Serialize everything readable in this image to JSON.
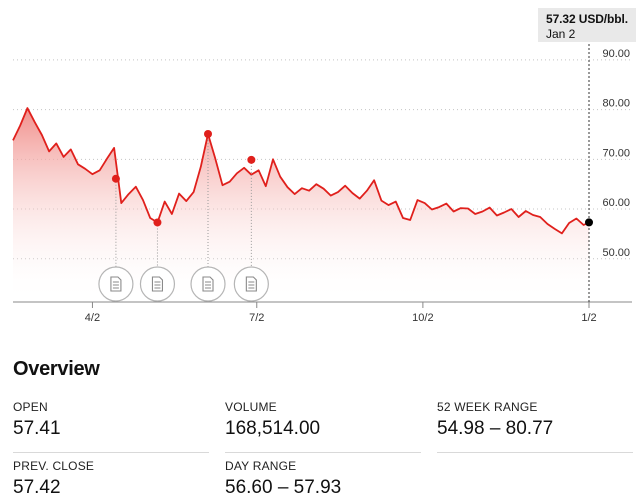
{
  "tooltip": {
    "value": "57.32 USD/bbl.",
    "date": "Jan 2"
  },
  "chart_data": {
    "type": "area",
    "unit": "USD/bbl.",
    "y_ticks": [
      90,
      80,
      70,
      60,
      50
    ],
    "y_tick_labels": [
      "90.00",
      "80.00",
      "70.00",
      "60.00",
      "50.00"
    ],
    "ylim": [
      41.3,
      92.8
    ],
    "xlim": [
      0,
      319
    ],
    "x_tick_positions": [
      44,
      135,
      227,
      319
    ],
    "x_tick_labels": [
      "4/2",
      "7/2",
      "10/2",
      "1/2"
    ],
    "grid": "horizontal dotted",
    "colors": {
      "line": "#e0201c",
      "fill_top": "#f08a86",
      "fill_bottom": "#ffffff",
      "marker_event": "#e0201c",
      "marker_current": "#000000",
      "grid": "#c4c4c4",
      "axis": "#888888"
    },
    "series": [
      {
        "x": [
          0,
          4,
          8,
          12,
          16,
          20,
          24,
          28,
          32,
          36,
          40,
          44,
          48,
          52,
          56,
          60,
          64,
          68,
          72,
          76,
          80,
          84,
          88,
          92,
          96,
          100,
          104,
          108,
          112,
          116,
          120,
          124,
          128,
          132,
          136,
          140,
          144,
          148,
          152,
          156,
          160,
          164,
          168,
          172,
          176,
          180,
          184,
          188,
          192,
          196,
          200,
          204,
          208,
          212,
          216,
          220,
          224,
          228,
          232,
          236,
          240,
          244,
          248,
          252,
          256,
          260,
          264,
          268,
          272,
          276,
          280,
          284,
          288,
          292,
          296,
          300,
          304,
          308,
          312,
          316,
          319
        ],
        "values": [
          73.8,
          76.8,
          80.3,
          77.5,
          74.9,
          71.6,
          73.2,
          70.5,
          72.0,
          69.0,
          68.1,
          67.0,
          67.8,
          70.1,
          72.3,
          61.2,
          63.0,
          64.5,
          61.8,
          58.2,
          57.3,
          61.5,
          59.0,
          63.1,
          61.6,
          63.4,
          68.5,
          75.1,
          70.2,
          64.8,
          65.5,
          67.2,
          68.3,
          66.9,
          67.8,
          64.6,
          70.0,
          66.5,
          64.4,
          63.0,
          64.2,
          63.7,
          65.0,
          64.1,
          62.7,
          63.4,
          64.7,
          63.2,
          62.1,
          63.7,
          65.8,
          61.7,
          60.8,
          61.5,
          58.2,
          57.8,
          61.8,
          61.2,
          59.9,
          60.4,
          61.1,
          59.5,
          60.2,
          60.1,
          59.0,
          59.5,
          60.3,
          58.7,
          59.3,
          60.0,
          58.4,
          59.6,
          58.8,
          58.4,
          57.0,
          56.0,
          55.1,
          57.2,
          58.1,
          56.8,
          57.32
        ]
      }
    ],
    "events": [
      {
        "x": 57,
        "value": 66.1
      },
      {
        "x": 80,
        "value": 57.3
      },
      {
        "x": 108,
        "value": 75.1
      },
      {
        "x": 132,
        "value": 69.9
      }
    ],
    "current": {
      "x": 319,
      "value": 57.32
    }
  },
  "overview": {
    "title": "Overview",
    "stats": {
      "open": {
        "label": "OPEN",
        "value": "57.41"
      },
      "volume": {
        "label": "VOLUME",
        "value": "168,514.00"
      },
      "range52": {
        "label": "52 WEEK RANGE",
        "value": "54.98 – 80.77"
      },
      "prev_close": {
        "label": "PREV. CLOSE",
        "value": "57.42"
      },
      "day_range": {
        "label": "DAY RANGE",
        "value": "56.60 – 57.93"
      }
    }
  }
}
